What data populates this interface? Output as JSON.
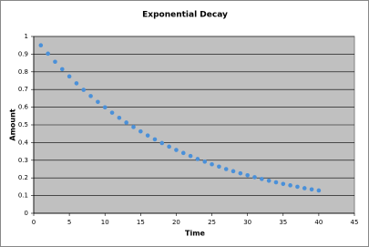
{
  "chart_data": {
    "type": "scatter",
    "title": "Exponential Decay",
    "x_label": "Time",
    "y_label": "Amount",
    "x": [
      1,
      2,
      3,
      4,
      5,
      6,
      7,
      8,
      9,
      10,
      11,
      12,
      13,
      14,
      15,
      16,
      17,
      18,
      19,
      20,
      21,
      22,
      23,
      24,
      25,
      26,
      27,
      28,
      29,
      30,
      31,
      32,
      33,
      34,
      35,
      36,
      37,
      38,
      39,
      40
    ],
    "series": [
      {
        "name": "Amount",
        "color": "#4a90d9",
        "values": [
          0.95,
          0.903,
          0.857,
          0.815,
          0.774,
          0.735,
          0.698,
          0.663,
          0.63,
          0.599,
          0.569,
          0.54,
          0.513,
          0.488,
          0.463,
          0.44,
          0.418,
          0.397,
          0.377,
          0.358,
          0.341,
          0.324,
          0.307,
          0.292,
          0.277,
          0.264,
          0.25,
          0.238,
          0.226,
          0.215,
          0.204,
          0.194,
          0.184,
          0.175,
          0.166,
          0.158,
          0.15,
          0.142,
          0.135,
          0.129
        ]
      }
    ],
    "xlim": [
      0,
      45
    ],
    "xticks": [
      0,
      5,
      10,
      15,
      20,
      25,
      30,
      35,
      40,
      45
    ],
    "ylim": [
      0,
      1
    ],
    "yticks": [
      0,
      0.1,
      0.2,
      0.3,
      0.4,
      0.5,
      0.6,
      0.7,
      0.8,
      0.9,
      1
    ],
    "grid": true,
    "plot_background": "#c0c0c0"
  }
}
